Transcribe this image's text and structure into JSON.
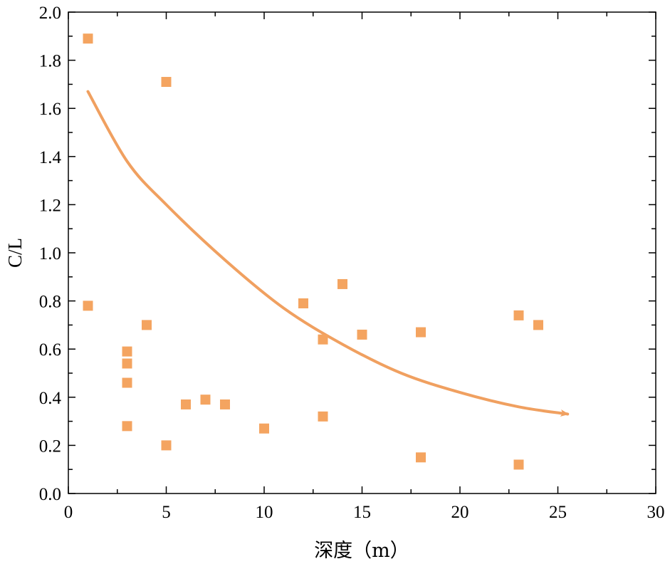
{
  "chart_data": {
    "type": "scatter",
    "xlabel": "深度（m）",
    "ylabel": "C/L",
    "xlim": [
      0,
      30
    ],
    "ylim": [
      0,
      2.0
    ],
    "x_ticks": [
      "0",
      "5",
      "10",
      "15",
      "20",
      "25",
      "30"
    ],
    "y_ticks": [
      "0.0",
      "0.2",
      "0.4",
      "0.6",
      "0.8",
      "1.0",
      "1.2",
      "1.4",
      "1.6",
      "1.8",
      "2.0"
    ],
    "grid": false,
    "legend": "none",
    "marker_color": "#F4A460",
    "trend_color": "#F0A060",
    "series": [
      {
        "points": [
          [
            1,
            1.89
          ],
          [
            1,
            0.78
          ],
          [
            3,
            0.59
          ],
          [
            3,
            0.54
          ],
          [
            3,
            0.46
          ],
          [
            3,
            0.28
          ],
          [
            4,
            0.7
          ],
          [
            5,
            1.71
          ],
          [
            5,
            0.2
          ],
          [
            6,
            0.37
          ],
          [
            7,
            0.39
          ],
          [
            8,
            0.37
          ],
          [
            10,
            0.27
          ],
          [
            12,
            0.79
          ],
          [
            13,
            0.64
          ],
          [
            13,
            0.32
          ],
          [
            14,
            0.87
          ],
          [
            15,
            0.66
          ],
          [
            18,
            0.67
          ],
          [
            18,
            0.15
          ],
          [
            23,
            0.74
          ],
          [
            23,
            0.12
          ],
          [
            24,
            0.7
          ]
        ]
      }
    ],
    "trend_arrow": {
      "points": [
        [
          1,
          1.67
        ],
        [
          3,
          1.38
        ],
        [
          5,
          1.2
        ],
        [
          8,
          0.97
        ],
        [
          11,
          0.77
        ],
        [
          14,
          0.62
        ],
        [
          17,
          0.5
        ],
        [
          20,
          0.42
        ],
        [
          23,
          0.36
        ],
        [
          25.5,
          0.33
        ]
      ]
    }
  }
}
